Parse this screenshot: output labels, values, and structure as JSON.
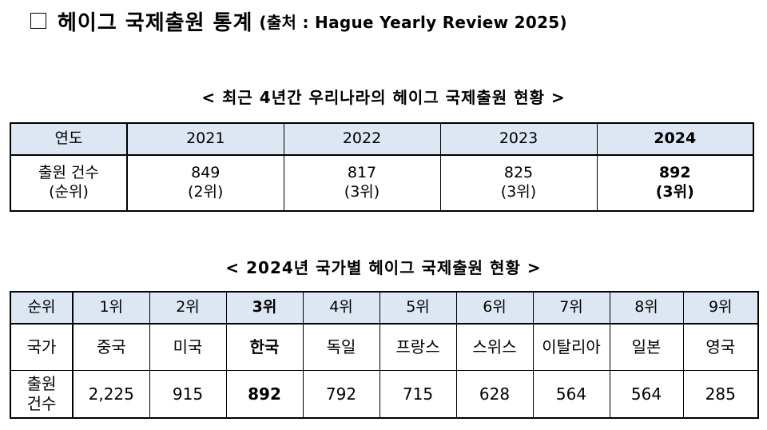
{
  "title": {
    "main": "헤이그 국제출원 통계",
    "source": "(출처 : Hague Yearly Review 2025)"
  },
  "table1": {
    "caption": "< 최근 4년간 우리나라의 헤이그 국제출원 현황 >",
    "header_label": "연도",
    "row_label_line1": "출원 건수",
    "row_label_line2": "(순위)",
    "years": [
      {
        "year": "2021",
        "count": "849",
        "rank": "(2위)"
      },
      {
        "year": "2022",
        "count": "817",
        "rank": "(3위)"
      },
      {
        "year": "2023",
        "count": "825",
        "rank": "(3위)"
      },
      {
        "year": "2024",
        "count": "892",
        "rank": "(3위)"
      }
    ]
  },
  "table2": {
    "caption": "< 2024년 국가별 헤이그 국제출원 현황 >",
    "rank_label": "순위",
    "country_label": "국가",
    "count_label_line1": "출원",
    "count_label_line2": "건수",
    "entries": [
      {
        "rank": "1위",
        "country": "중국",
        "count": "2,225"
      },
      {
        "rank": "2위",
        "country": "미국",
        "count": "915"
      },
      {
        "rank": "3위",
        "country": "한국",
        "count": "892"
      },
      {
        "rank": "4위",
        "country": "독일",
        "count": "792"
      },
      {
        "rank": "5위",
        "country": "프랑스",
        "count": "715"
      },
      {
        "rank": "6위",
        "country": "스위스",
        "count": "628"
      },
      {
        "rank": "7위",
        "country": "이탈리아",
        "count": "564"
      },
      {
        "rank": "8위",
        "country": "일본",
        "count": "564"
      },
      {
        "rank": "9위",
        "country": "영국",
        "count": "285"
      }
    ]
  },
  "colors": {
    "header_bg": "#dde7f4"
  }
}
